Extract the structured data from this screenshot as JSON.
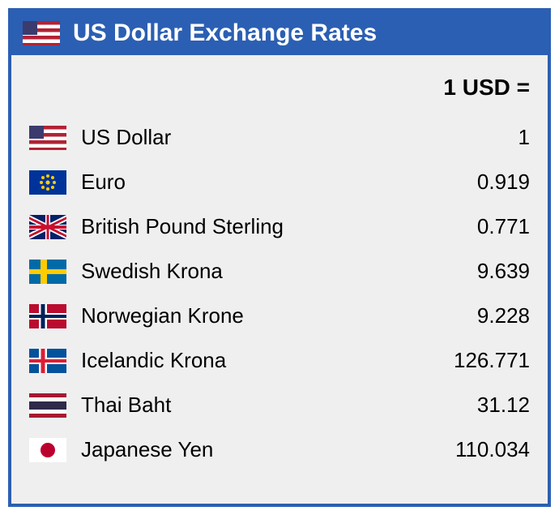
{
  "header": {
    "title": "US Dollar Exchange Rates",
    "flag": "us"
  },
  "subheader": "1 USD =",
  "rows": [
    {
      "flag": "us",
      "name": "US Dollar",
      "rate": "1"
    },
    {
      "flag": "eu",
      "name": "Euro",
      "rate": "0.919"
    },
    {
      "flag": "gb",
      "name": "British Pound Sterling",
      "rate": "0.771"
    },
    {
      "flag": "se",
      "name": "Swedish Krona",
      "rate": "9.639"
    },
    {
      "flag": "no",
      "name": "Norwegian Krone",
      "rate": "9.228"
    },
    {
      "flag": "is",
      "name": "Icelandic Krona",
      "rate": "126.771"
    },
    {
      "flag": "th",
      "name": "Thai Baht",
      "rate": "31.12"
    },
    {
      "flag": "jp",
      "name": "Japanese Yen",
      "rate": "110.034"
    }
  ],
  "colors": {
    "panel_border": "#2b5fb3",
    "header_bg": "#2b5fb3",
    "body_bg": "#efefef",
    "text": "#000000",
    "header_text": "#ffffff"
  }
}
